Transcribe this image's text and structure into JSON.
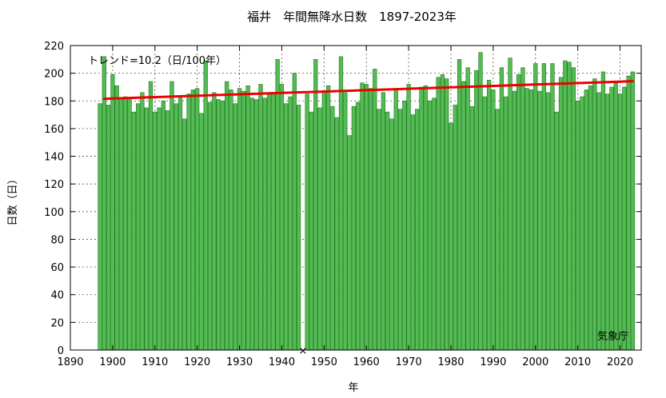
{
  "chart_data": {
    "type": "bar",
    "title": "福井　年間無降水日数　1897-2023年",
    "xlabel": "年",
    "ylabel": "日数（日）",
    "xlim": [
      1890,
      2025
    ],
    "ylim": [
      0,
      220
    ],
    "x_ticks": [
      1890,
      1900,
      1910,
      1920,
      1930,
      1940,
      1950,
      1960,
      1970,
      1980,
      1990,
      2000,
      2010,
      2020
    ],
    "y_ticks": [
      0,
      20,
      40,
      60,
      80,
      100,
      120,
      140,
      160,
      180,
      200,
      220
    ],
    "grid": true,
    "bar_color": "#55bb55",
    "bar_edge_color": "#1a7a1a",
    "trend": {
      "label": "トレンド=10.2（日/100年）",
      "color": "#ee0000",
      "x": [
        1898,
        2023
      ],
      "y": [
        181.5,
        194.2
      ]
    },
    "missing": [
      {
        "year": 1945,
        "marker": "×"
      }
    ],
    "source": "気象庁",
    "series": [
      {
        "years": [
          1897,
          1898,
          1899,
          1900,
          1901,
          1902,
          1903,
          1904,
          1905,
          1906,
          1907,
          1908,
          1909,
          1910,
          1911,
          1912,
          1913,
          1914,
          1915,
          1916,
          1917,
          1918,
          1919,
          1920,
          1921,
          1922,
          1923,
          1924,
          1925,
          1926,
          1927,
          1928,
          1929,
          1930,
          1931,
          1932,
          1933,
          1934,
          1935,
          1936,
          1937,
          1938,
          1939,
          1940,
          1941,
          1942,
          1943,
          1944,
          1946,
          1947,
          1948,
          1949,
          1950,
          1951,
          1952,
          1953,
          1954,
          1955,
          1956,
          1957,
          1958,
          1959,
          1960,
          1961,
          1962,
          1963,
          1964,
          1965,
          1966,
          1967,
          1968,
          1969,
          1970,
          1971,
          1972,
          1973,
          1974,
          1975,
          1976,
          1977,
          1978,
          1979,
          1980,
          1981,
          1982,
          1983,
          1984,
          1985,
          1986,
          1987,
          1988,
          1989,
          1990,
          1991,
          1992,
          1993,
          1994,
          1995,
          1996,
          1997,
          1998,
          1999,
          2000,
          2001,
          2002,
          2003,
          2004,
          2005,
          2006,
          2007,
          2008,
          2009,
          2010,
          2011,
          2012,
          2013,
          2014,
          2015,
          2016,
          2017,
          2018,
          2019,
          2020,
          2021,
          2022,
          2023
        ],
        "values": [
          178,
          212,
          177,
          199,
          191,
          182,
          183,
          181,
          172,
          178,
          186,
          175,
          194,
          172,
          175,
          180,
          173,
          194,
          178,
          183,
          167,
          185,
          188,
          189,
          171,
          209,
          179,
          186,
          181,
          180,
          194,
          188,
          178,
          189,
          187,
          191,
          182,
          181,
          192,
          182,
          186,
          185,
          210,
          192,
          178,
          183,
          200,
          177,
          185,
          172,
          210,
          175,
          187,
          191,
          176,
          168,
          212,
          186,
          155,
          176,
          179,
          193,
          192,
          189,
          203,
          174,
          186,
          172,
          167,
          188,
          174,
          180,
          192,
          170,
          174,
          190,
          191,
          180,
          182,
          197,
          199,
          196,
          164,
          177,
          210,
          194,
          204,
          176,
          202,
          215,
          183,
          195,
          188,
          174,
          204,
          183,
          211,
          187,
          199,
          204,
          189,
          188,
          207,
          187,
          207,
          186,
          207,
          172,
          197,
          209,
          208,
          204,
          180,
          183,
          188,
          191,
          196,
          186,
          201,
          185,
          190,
          193,
          185,
          190,
          198,
          201
        ]
      }
    ]
  }
}
